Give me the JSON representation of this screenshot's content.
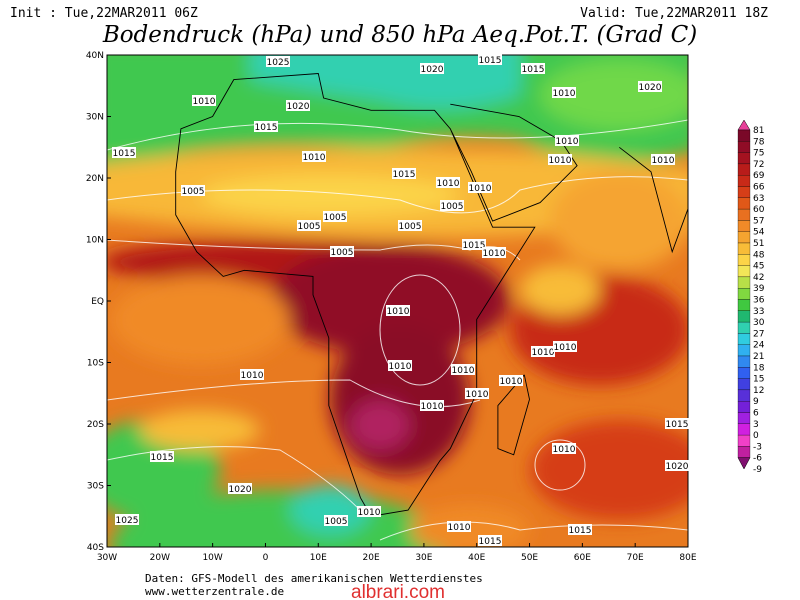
{
  "header": {
    "init": "Init : Tue,22MAR2011 06Z",
    "valid": "Valid: Tue,22MAR2011 18Z",
    "title": "Bodendruck (hPa) und 850 hPa Aeq.Pot.T. (Grad C)"
  },
  "map": {
    "lat_labels": [
      "40N",
      "30N",
      "20N",
      "10N",
      "EQ",
      "10S",
      "20S",
      "30S",
      "40S"
    ],
    "lon_labels": [
      "30W",
      "20W",
      "10W",
      "0",
      "10E",
      "20E",
      "30E",
      "40E",
      "50E",
      "60E",
      "70E",
      "80E"
    ],
    "isobar_labels": [
      "1025",
      "1020",
      "1015",
      "1015",
      "1010",
      "1010",
      "1020",
      "1015",
      "1015",
      "1010",
      "1015",
      "1010",
      "1010",
      "1010",
      "1010",
      "1010",
      "1005",
      "1005",
      "1005",
      "1005",
      "1005",
      "1005",
      "1015",
      "1010",
      "1010",
      "1010",
      "1010",
      "1010",
      "1010",
      "1010",
      "1010",
      "1010",
      "1010",
      "1015",
      "1010",
      "1015",
      "1020",
      "1020",
      "1010",
      "1005",
      "1025",
      "1010",
      "1015",
      "1015",
      "1020"
    ]
  },
  "colorbar": {
    "levels": [
      "81",
      "78",
      "75",
      "72",
      "69",
      "66",
      "63",
      "60",
      "57",
      "54",
      "51",
      "48",
      "45",
      "42",
      "39",
      "36",
      "33",
      "30",
      "27",
      "24",
      "21",
      "18",
      "15",
      "12",
      "9",
      "6",
      "3",
      "0",
      "-3",
      "-6",
      "-9"
    ],
    "colors": [
      "#e8409a",
      "#7a0828",
      "#900c26",
      "#a41220",
      "#b81c1a",
      "#c82a18",
      "#d63e18",
      "#e05818",
      "#e87020",
      "#f08a28",
      "#f5a430",
      "#f8bc38",
      "#fcd448",
      "#f2e658",
      "#b8e048",
      "#80d840",
      "#40c840",
      "#20b870",
      "#30d0b0",
      "#30cce0",
      "#30b0f0",
      "#3088f0",
      "#3060f0",
      "#4040e0",
      "#5830d8",
      "#7420d8",
      "#a020e0",
      "#d020e0",
      "#f040c8",
      "#c020a0",
      "#801070"
    ]
  },
  "footer": {
    "source": "Daten: GFS-Modell des amerikanischen Wetterdienstes",
    "site": "www.wetterzentrale.de",
    "watermark": "albrari.com"
  }
}
